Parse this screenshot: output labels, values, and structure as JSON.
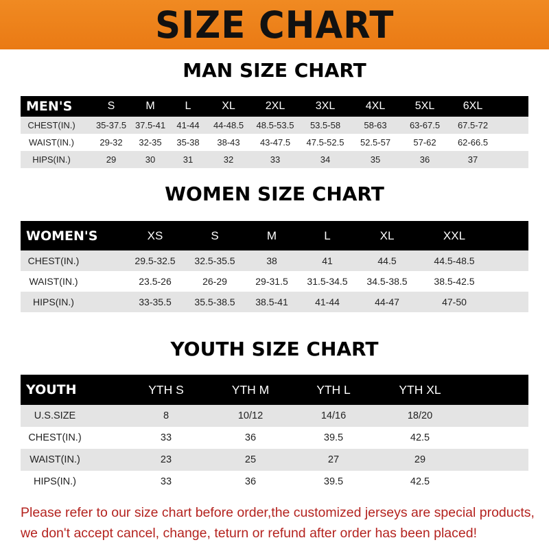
{
  "banner": {
    "title": "SIZE CHART",
    "color": "#ee8220"
  },
  "men": {
    "title": "MAN SIZE CHART",
    "header": [
      "MEN'S",
      "S",
      "M",
      "L",
      "XL",
      "2XL",
      "3XL",
      "4XL",
      "5XL",
      "6XL"
    ],
    "rows": [
      [
        "CHEST(IN.)",
        "35-37.5",
        "37.5-41",
        "41-44",
        "44-48.5",
        "48.5-53.5",
        "53.5-58",
        "58-63",
        "63-67.5",
        "67.5-72"
      ],
      [
        "WAIST(IN.)",
        "29-32",
        "32-35",
        "35-38",
        "38-43",
        "43-47.5",
        "47.5-52.5",
        "52.5-57",
        "57-62",
        "62-66.5"
      ],
      [
        "HIPS(IN.)",
        "29",
        "30",
        "31",
        "32",
        "33",
        "34",
        "35",
        "36",
        "37"
      ]
    ]
  },
  "women": {
    "title": "WOMEN SIZE CHART",
    "header": [
      "WOMEN'S",
      "XS",
      "S",
      "M",
      "L",
      "XL",
      "XXL"
    ],
    "rows": [
      [
        "CHEST(IN.)",
        "29.5-32.5",
        "32.5-35.5",
        "38",
        "41",
        "44.5",
        "44.5-48.5"
      ],
      [
        "WAIST(IN.)",
        "23.5-26",
        "26-29",
        "29-31.5",
        "31.5-34.5",
        "34.5-38.5",
        "38.5-42.5"
      ],
      [
        "HIPS(IN.)",
        "33-35.5",
        "35.5-38.5",
        "38.5-41",
        "41-44",
        "44-47",
        "47-50"
      ]
    ]
  },
  "youth": {
    "title": "YOUTH SIZE CHART",
    "header": [
      "YOUTH",
      "YTH S",
      "YTH M",
      "YTH L",
      "YTH XL"
    ],
    "rows": [
      [
        "U.S.SIZE",
        "8",
        "10/12",
        "14/16",
        "18/20"
      ],
      [
        "CHEST(IN.)",
        "33",
        "36",
        "39.5",
        "42.5"
      ],
      [
        "WAIST(IN.)",
        "23",
        "25",
        "27",
        "29"
      ],
      [
        "HIPS(IN.)",
        "33",
        "36",
        "39.5",
        "42.5"
      ]
    ]
  },
  "footer": {
    "line1": "Please refer to our size chart before order,the customized jerseys are special products,",
    "line2": "we don't accept cancel, change, teturn or refund after order has been placed!",
    "color": "#b4231f"
  }
}
